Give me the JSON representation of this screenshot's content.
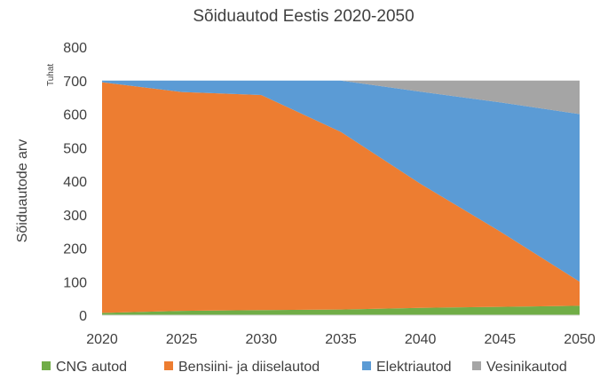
{
  "chart_data": {
    "type": "area",
    "stacked": true,
    "title": "Sõiduautod Eestis 2020-2050",
    "ylabel": "Sõiduautode arv",
    "yunit": "Tuhat",
    "xlabel": "",
    "x": [
      2020,
      2025,
      2030,
      2035,
      2040,
      2045,
      2050
    ],
    "xlim": [
      2020,
      2050
    ],
    "ylim": [
      0,
      800
    ],
    "yticks": [
      0,
      100,
      200,
      300,
      400,
      500,
      600,
      700,
      800
    ],
    "xticks": [
      2020,
      2025,
      2030,
      2035,
      2040,
      2045,
      2050
    ],
    "grid": false,
    "legend": "bottom",
    "series": [
      {
        "name": "CNG autod",
        "color": "#70AD47",
        "values": [
          7,
          13,
          15,
          17,
          22,
          25,
          28
        ]
      },
      {
        "name": "Bensiini- ja diiselautod",
        "color": "#ED7D31",
        "values": [
          688,
          653,
          642,
          530,
          370,
          225,
          72
        ]
      },
      {
        "name": "Elektriautod",
        "color": "#5B9BD5",
        "values": [
          5,
          34,
          43,
          153,
          275,
          385,
          500
        ]
      },
      {
        "name": "Vesinikautod",
        "color": "#A5A5A5",
        "values": [
          0,
          0,
          0,
          0,
          33,
          65,
          100
        ]
      }
    ]
  }
}
